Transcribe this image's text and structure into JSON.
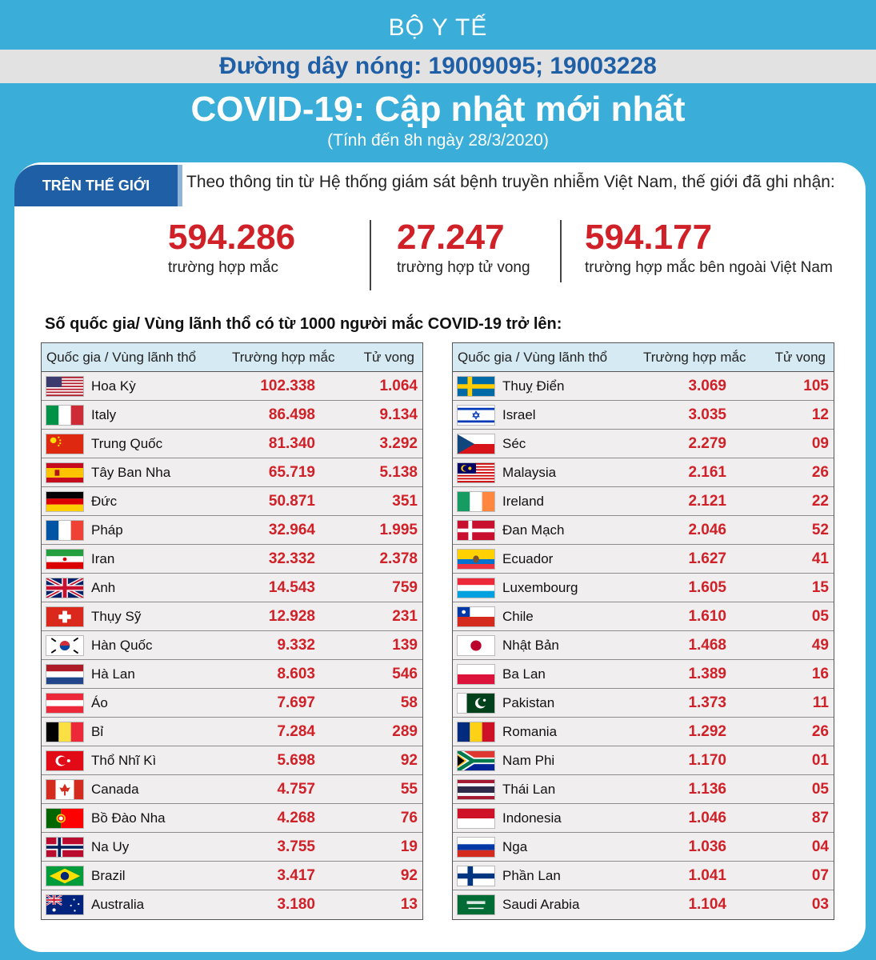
{
  "header": {
    "org": "BỘ Y TẾ",
    "hotline": "Đường dây nóng: 19009095; 19003228",
    "title": "COVID-19: Cập nhật mới nhất",
    "subtitle": "(Tính đến 8h ngày 28/3/2020)"
  },
  "world": {
    "tab_label": "TRÊN THẾ GIỚI",
    "intro": "Theo thông tin từ Hệ thống giám sát bệnh truyền nhiễm Việt Nam, thế giới đã ghi nhận:",
    "stats": [
      {
        "value": "594.286",
        "label": "trường hợp mắc"
      },
      {
        "value": "27.247",
        "label": "trường hợp tử vong"
      },
      {
        "value": "594.177",
        "label": "trường hợp  mắc bên ngoài Việt Nam"
      }
    ]
  },
  "list_title": "Số quốc gia/ Vùng lãnh thổ có từ 1000 người  mắc COVID-19 trở lên:",
  "table_header": {
    "country": "Quốc gia / Vùng lãnh thổ",
    "cases": "Trường hợp mắc",
    "deaths": "Tử vong"
  },
  "left_rows": [
    {
      "flag": "us",
      "name": "Hoa Kỳ",
      "cases": "102.338",
      "deaths": "1.064"
    },
    {
      "flag": "it",
      "name": "Italy",
      "cases": "86.498",
      "deaths": "9.134"
    },
    {
      "flag": "cn",
      "name": "Trung Quốc",
      "cases": "81.340",
      "deaths": "3.292"
    },
    {
      "flag": "es",
      "name": "Tây Ban Nha",
      "cases": "65.719",
      "deaths": "5.138"
    },
    {
      "flag": "de",
      "name": "Đức",
      "cases": "50.871",
      "deaths": "351"
    },
    {
      "flag": "fr",
      "name": "Pháp",
      "cases": "32.964",
      "deaths": "1.995"
    },
    {
      "flag": "ir",
      "name": "Iran",
      "cases": "32.332",
      "deaths": "2.378"
    },
    {
      "flag": "gb",
      "name": "Anh",
      "cases": "14.543",
      "deaths": "759"
    },
    {
      "flag": "ch",
      "name": "Thụy Sỹ",
      "cases": "12.928",
      "deaths": "231"
    },
    {
      "flag": "kr",
      "name": "Hàn Quốc",
      "cases": "9.332",
      "deaths": "139"
    },
    {
      "flag": "nl",
      "name": "Hà Lan",
      "cases": "8.603",
      "deaths": "546"
    },
    {
      "flag": "at",
      "name": "Áo",
      "cases": "7.697",
      "deaths": "58"
    },
    {
      "flag": "be",
      "name": "Bỉ",
      "cases": "7.284",
      "deaths": "289"
    },
    {
      "flag": "tr",
      "name": "Thổ Nhĩ Kì",
      "cases": "5.698",
      "deaths": "92"
    },
    {
      "flag": "ca",
      "name": "Canada",
      "cases": "4.757",
      "deaths": "55"
    },
    {
      "flag": "pt",
      "name": "Bồ Đào Nha",
      "cases": "4.268",
      "deaths": "76"
    },
    {
      "flag": "no",
      "name": "Na Uy",
      "cases": "3.755",
      "deaths": "19"
    },
    {
      "flag": "br",
      "name": "Brazil",
      "cases": "3.417",
      "deaths": "92"
    },
    {
      "flag": "au",
      "name": "Australia",
      "cases": "3.180",
      "deaths": "13"
    }
  ],
  "right_rows": [
    {
      "flag": "se",
      "name": "Thuỵ Điển",
      "cases": "3.069",
      "deaths": "105"
    },
    {
      "flag": "il",
      "name": "Israel",
      "cases": "3.035",
      "deaths": "12"
    },
    {
      "flag": "cz",
      "name": "Séc",
      "cases": "2.279",
      "deaths": "09"
    },
    {
      "flag": "my",
      "name": "Malaysia",
      "cases": "2.161",
      "deaths": "26"
    },
    {
      "flag": "ie",
      "name": "Ireland",
      "cases": "2.121",
      "deaths": "22"
    },
    {
      "flag": "dk",
      "name": "Đan Mạch",
      "cases": "2.046",
      "deaths": "52"
    },
    {
      "flag": "ec",
      "name": "Ecuador",
      "cases": "1.627",
      "deaths": "41"
    },
    {
      "flag": "lu",
      "name": "Luxembourg",
      "cases": "1.605",
      "deaths": "15"
    },
    {
      "flag": "cl",
      "name": "Chile",
      "cases": "1.610",
      "deaths": "05"
    },
    {
      "flag": "jp",
      "name": "Nhật Bản",
      "cases": "1.468",
      "deaths": "49"
    },
    {
      "flag": "pl",
      "name": "Ba Lan",
      "cases": "1.389",
      "deaths": "16"
    },
    {
      "flag": "pk",
      "name": "Pakistan",
      "cases": "1.373",
      "deaths": "11"
    },
    {
      "flag": "ro",
      "name": "Romania",
      "cases": "1.292",
      "deaths": "26"
    },
    {
      "flag": "za",
      "name": "Nam Phi",
      "cases": "1.170",
      "deaths": "01"
    },
    {
      "flag": "th",
      "name": "Thái Lan",
      "cases": "1.136",
      "deaths": "05"
    },
    {
      "flag": "id",
      "name": "Indonesia",
      "cases": "1.046",
      "deaths": "87"
    },
    {
      "flag": "ru",
      "name": "Nga",
      "cases": "1.036",
      "deaths": "04"
    },
    {
      "flag": "fi",
      "name": "Phần Lan",
      "cases": "1.041",
      "deaths": "07"
    },
    {
      "flag": "sa",
      "name": "Saudi Arabia",
      "cases": "1.104",
      "deaths": "03"
    }
  ],
  "colors": {
    "background": "#3aaed8",
    "accent_blue": "#1f5fa6",
    "number_red": "#cf2127",
    "row_bg": "#f1eeef"
  }
}
